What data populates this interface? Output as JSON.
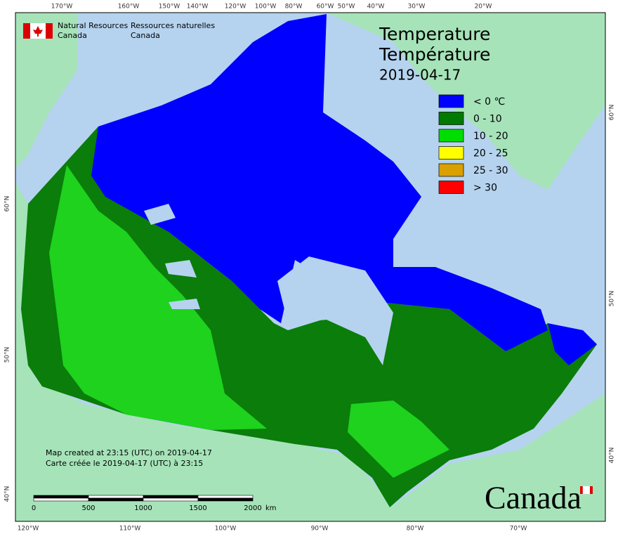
{
  "header": {
    "agency_en": [
      "Natural Resources",
      "Canada"
    ],
    "agency_fr": [
      "Ressources naturelles",
      "Canada"
    ]
  },
  "title": {
    "en": "Temperature",
    "fr": "Température",
    "date": "2019-04-17"
  },
  "legend": [
    {
      "label": "< 0 ℃",
      "color": "#0000ff"
    },
    {
      "label": "0 - 10",
      "color": "#007a00"
    },
    {
      "label": "10 - 20",
      "color": "#00dd00"
    },
    {
      "label": "20 - 25",
      "color": "#ffff00"
    },
    {
      "label": "25 - 30",
      "color": "#d9a000"
    },
    {
      "label": "> 30",
      "color": "#ff0000"
    }
  ],
  "graticule": {
    "top": [
      "170°W",
      "160°W",
      "150°W",
      "140°W",
      "120°W",
      "100°W",
      "80°W",
      "60°W",
      "50°W",
      "40°W",
      "30°W",
      "20°W"
    ],
    "bottom": [
      "120°W",
      "110°W",
      "100°W",
      "90°W",
      "80°W",
      "70°W"
    ],
    "left": [
      "60°N",
      "50°N",
      "40°N"
    ],
    "right": [
      "60°N",
      "50°N",
      "40°N"
    ]
  },
  "footnote": [
    "Map created at 23:15 (UTC) on 2019-04-17",
    "Carte créée le 2019-04-17 (UTC) à 23:15"
  ],
  "scale_bar": {
    "ticks": [
      "0",
      "500",
      "1000",
      "1500",
      "2000"
    ],
    "unit": "km"
  },
  "wordmark": "Canada"
}
